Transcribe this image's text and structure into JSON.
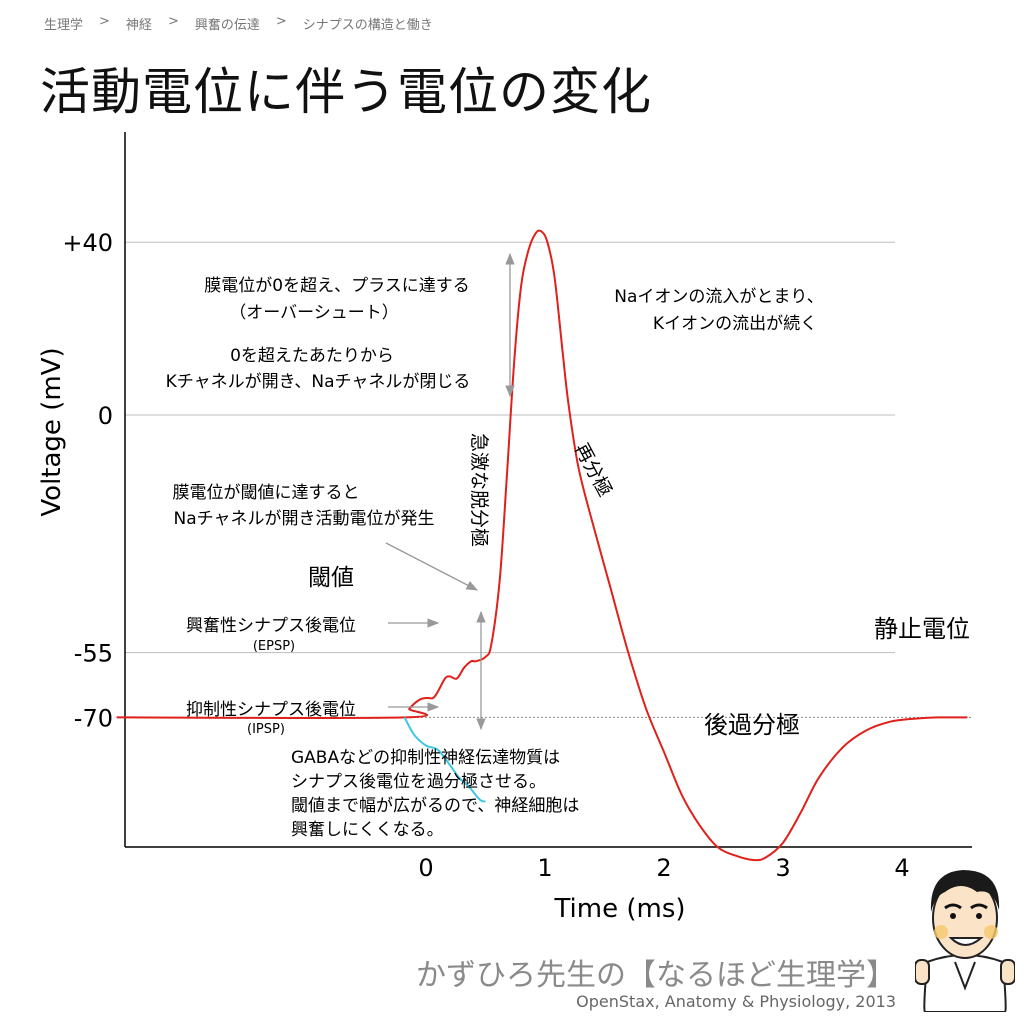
{
  "breadcrumb": [
    "生理学",
    "神経",
    "興奮の伝達",
    "シナプスの構造と働き"
  ],
  "breadcrumb_separator": ">",
  "title": "活動電位に伴う電位の変化",
  "chart_data": {
    "type": "line",
    "xlabel": "Time (ms)",
    "ylabel": "Voltage (mV)",
    "x_ticks": [
      0,
      1,
      2,
      3,
      4
    ],
    "y_ticks": [
      40,
      0,
      -55,
      -70
    ],
    "y_tick_labels": [
      "+40",
      "0",
      "-55",
      "-70"
    ],
    "xlim": [
      -2.6,
      4.55
    ],
    "ylim": [
      -100,
      67
    ],
    "grid": "horizontal reference lines at +40, 0, -55 (solid gray) and -70 (dotted)",
    "colors": {
      "action_potential": "#e0201a",
      "ipsp": "#3cc7e6",
      "reference": "#bdbdbd",
      "arrow": "#999999"
    },
    "series": [
      {
        "key": "action_potential",
        "x": [
          -2.6,
          -0.18,
          -0.14,
          -0.06,
          0.0,
          0.06,
          0.1,
          0.16,
          0.2,
          0.26,
          0.32,
          0.38,
          0.42,
          0.5,
          0.55,
          0.62,
          0.68,
          0.74,
          0.8,
          0.86,
          0.92,
          0.97,
          1.02,
          1.08,
          1.15,
          1.2,
          1.28,
          1.4,
          1.55,
          1.7,
          1.85,
          2.0,
          2.15,
          2.3,
          2.45,
          2.6,
          2.75,
          2.85,
          3.0,
          3.15,
          3.3,
          3.5,
          3.7,
          3.9,
          4.1,
          4.3,
          4.55
        ],
        "y": [
          -70,
          -70,
          -68,
          -66,
          -65.5,
          -65.5,
          -64,
          -61,
          -60.5,
          -61,
          -58.5,
          -57,
          -57,
          -56,
          -53,
          -38,
          -14,
          12,
          30,
          38,
          42,
          42.5,
          40,
          32,
          14,
          2,
          -12,
          -25,
          -40,
          -55,
          -68,
          -78,
          -88,
          -95,
          -100,
          -102,
          -103,
          -102.5,
          -99,
          -92,
          -84,
          -77,
          -73,
          -71,
          -70.3,
          -70,
          -70
        ]
      },
      {
        "key": "ipsp",
        "x": [
          -0.18,
          -0.1,
          0.0,
          0.1,
          0.2,
          0.28,
          0.36,
          0.45,
          0.5
        ],
        "y": [
          -70,
          -74,
          -76.5,
          -77.5,
          -81,
          -84,
          -86,
          -89,
          -89.5
        ]
      }
    ],
    "annotations": {
      "threshold": "閾値",
      "resting": "静止電位",
      "hyperpolarization": "後過分極",
      "depolarization": "急激な脱分極",
      "repolarization": "再分極",
      "overshoot": [
        "膜電位が0を超え、プラスに達する",
        "（オーバーシュート）"
      ],
      "channels": [
        "0を超えたあたりから",
        "Kチャネルが開き、Naチャネルが閉じる"
      ],
      "threshold_reached": [
        "膜電位が閾値に達すると",
        "Naチャネルが開き活動電位が発生"
      ],
      "na_k": [
        "Naイオンの流入がとまり、",
        "Kイオンの流出が続く"
      ],
      "epsp": "興奮性シナプス後電位",
      "epsp_abbr": "(EPSP)",
      "ipsp": "抑制性シナプス後電位",
      "ipsp_abbr": "(IPSP)",
      "gaba": [
        "GABAなどの抑制性神経伝達物質は",
        "シナプス後電位を過分極させる。",
        "閾値まで幅が広がるので、神経細胞は",
        "興奮しにくくなる。"
      ]
    }
  },
  "footer": {
    "title": "かずひろ先生の【なるほど生理学】",
    "credit": "OpenStax, Anatomy & Physiology, 2013"
  }
}
